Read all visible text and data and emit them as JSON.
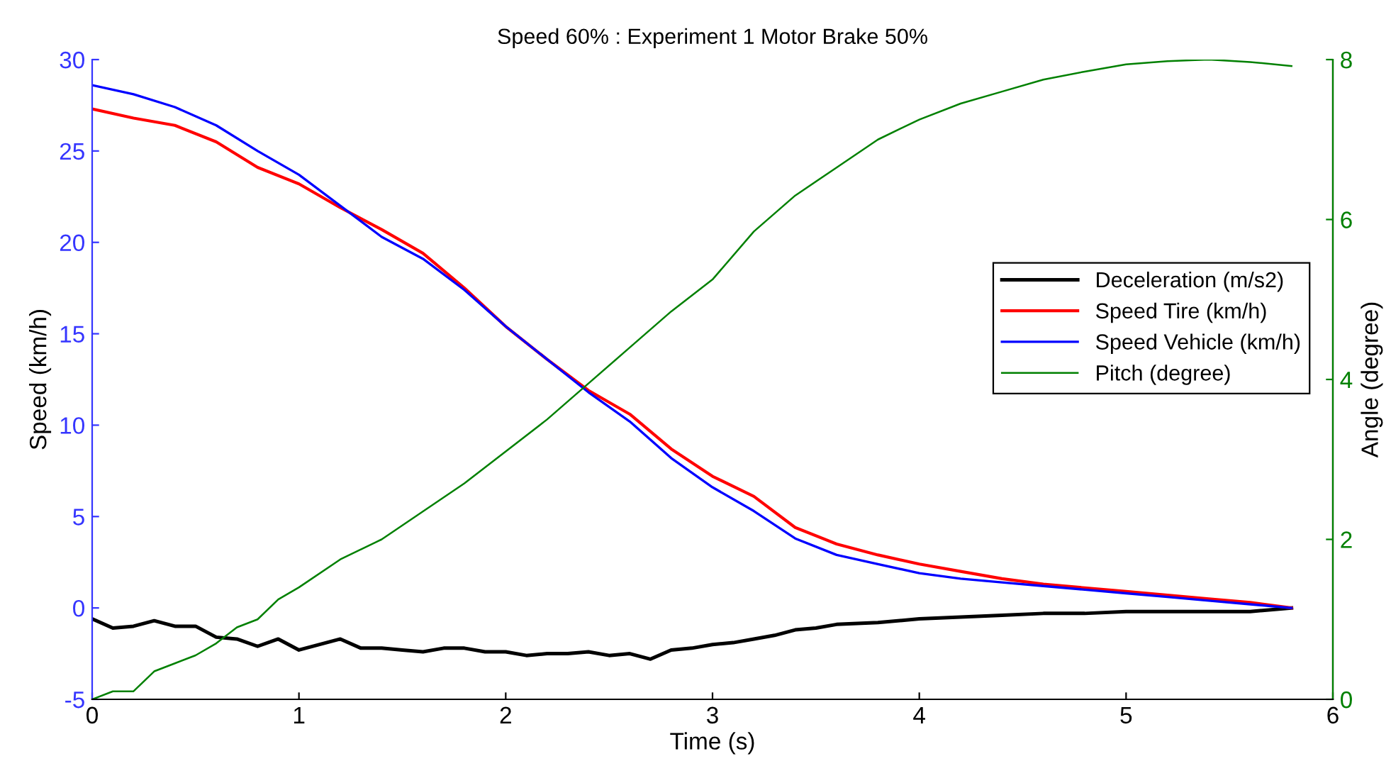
{
  "chart_data": {
    "type": "line",
    "title": "Speed 60% : Experiment 1 Motor Brake 50%",
    "xlabel": "Time (s)",
    "ylabel": "Speed (km/h)",
    "y2label": "Angle (degree)",
    "xlim": [
      0,
      6
    ],
    "xticks": [
      0,
      1,
      2,
      3,
      4,
      5,
      6
    ],
    "ylim": [
      -5,
      30
    ],
    "yticks": [
      -5,
      0,
      5,
      10,
      15,
      20,
      25,
      30
    ],
    "y2lim": [
      0,
      8
    ],
    "y2ticks": [
      0,
      2,
      4,
      6,
      8
    ],
    "grid": false,
    "legend": "right",
    "marker": "none",
    "line_style": "solid",
    "series": [
      {
        "name": "Deceleration (m/s2)",
        "color": "#000000",
        "x": [
          0,
          0.1,
          0.2,
          0.3,
          0.4,
          0.5,
          0.6,
          0.7,
          0.8,
          0.9,
          1.0,
          1.1,
          1.2,
          1.3,
          1.4,
          1.5,
          1.6,
          1.7,
          1.8,
          1.9,
          2.0,
          2.1,
          2.2,
          2.3,
          2.4,
          2.5,
          2.6,
          2.7,
          2.8,
          2.9,
          3.0,
          3.1,
          3.2,
          3.3,
          3.4,
          3.5,
          3.6,
          3.8,
          4.0,
          4.2,
          4.4,
          4.6,
          4.8,
          5.0,
          5.2,
          5.4,
          5.6,
          5.8
        ],
        "values": [
          -0.6,
          -1.1,
          -1.0,
          -0.7,
          -1.0,
          -1.0,
          -1.6,
          -1.7,
          -2.1,
          -1.7,
          -2.3,
          -2.0,
          -1.7,
          -2.2,
          -2.2,
          -2.3,
          -2.4,
          -2.2,
          -2.2,
          -2.4,
          -2.4,
          -2.6,
          -2.5,
          -2.5,
          -2.4,
          -2.6,
          -2.5,
          -2.8,
          -2.3,
          -2.2,
          -2.0,
          -1.9,
          -1.7,
          -1.5,
          -1.2,
          -1.1,
          -0.9,
          -0.8,
          -0.6,
          -0.5,
          -0.4,
          -0.3,
          -0.3,
          -0.2,
          -0.2,
          -0.2,
          -0.2,
          0
        ]
      },
      {
        "name": "Speed Tire (km/h)",
        "color": "#ff0000",
        "x": [
          0,
          0.2,
          0.4,
          0.6,
          0.8,
          1.0,
          1.2,
          1.4,
          1.6,
          1.8,
          2.0,
          2.2,
          2.4,
          2.6,
          2.8,
          3.0,
          3.2,
          3.4,
          3.6,
          3.8,
          4.0,
          4.2,
          4.4,
          4.6,
          4.8,
          5.0,
          5.2,
          5.4,
          5.6,
          5.8
        ],
        "values": [
          27.3,
          26.8,
          26.4,
          25.5,
          24.1,
          23.2,
          21.9,
          20.7,
          19.4,
          17.5,
          15.4,
          13.6,
          11.9,
          10.6,
          8.7,
          7.2,
          6.1,
          4.4,
          3.5,
          2.9,
          2.4,
          2.0,
          1.6,
          1.3,
          1.1,
          0.9,
          0.7,
          0.5,
          0.3,
          0
        ]
      },
      {
        "name": "Speed Vehicle (km/h)",
        "color": "#0000ff",
        "x": [
          0,
          0.2,
          0.4,
          0.6,
          0.8,
          1.0,
          1.2,
          1.4,
          1.6,
          1.8,
          2.0,
          2.2,
          2.4,
          2.6,
          2.8,
          3.0,
          3.2,
          3.4,
          3.6,
          3.8,
          4.0,
          4.2,
          4.4,
          4.6,
          4.8,
          5.0,
          5.2,
          5.4,
          5.6,
          5.8
        ],
        "values": [
          28.6,
          28.1,
          27.4,
          26.4,
          25.0,
          23.7,
          22.0,
          20.3,
          19.1,
          17.4,
          15.4,
          13.6,
          11.8,
          10.2,
          8.2,
          6.6,
          5.3,
          3.8,
          2.9,
          2.4,
          1.9,
          1.6,
          1.4,
          1.2,
          1.0,
          0.8,
          0.6,
          0.4,
          0.2,
          0
        ]
      },
      {
        "name": "Pitch (degree)",
        "color": "#008000",
        "axis": "y2",
        "x": [
          0,
          0.1,
          0.2,
          0.3,
          0.4,
          0.5,
          0.6,
          0.7,
          0.8,
          0.9,
          1.0,
          1.2,
          1.4,
          1.6,
          1.8,
          2.0,
          2.2,
          2.4,
          2.6,
          2.8,
          3.0,
          3.2,
          3.4,
          3.6,
          3.8,
          4.0,
          4.2,
          4.4,
          4.6,
          4.8,
          5.0,
          5.2,
          5.4,
          5.6,
          5.8
        ],
        "values": [
          0,
          0.1,
          0.1,
          0.35,
          0.45,
          0.55,
          0.7,
          0.9,
          1.0,
          1.25,
          1.4,
          1.75,
          2.0,
          2.35,
          2.7,
          3.1,
          3.5,
          3.95,
          4.4,
          4.85,
          5.25,
          5.85,
          6.3,
          6.65,
          7.0,
          7.25,
          7.45,
          7.6,
          7.75,
          7.85,
          7.94,
          7.98,
          8.0,
          7.97,
          7.92
        ]
      }
    ]
  }
}
